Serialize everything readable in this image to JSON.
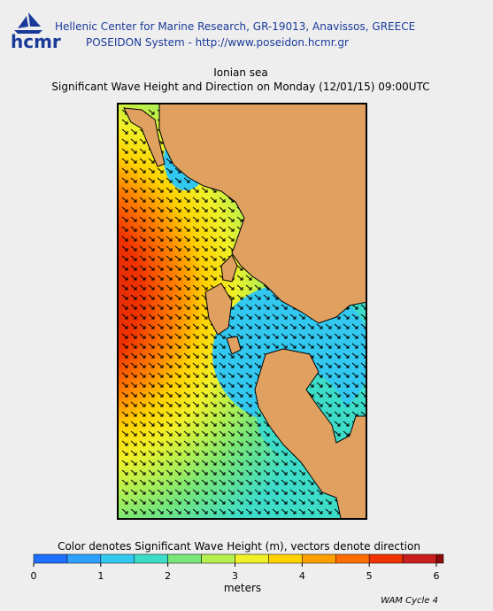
{
  "header": {
    "logo": "hcmr",
    "line1": "Hellenic Center for Marine Research, GR-19013, Anavissos, GREECE",
    "line2": "POSEIDON System - http://www.poseidon.hcmr.gr"
  },
  "map": {
    "region": "Ionian sea",
    "title": "Significant Wave Height and Direction on Monday (12/01/15) 09:00UTC"
  },
  "colorbar": {
    "caption": "Color denotes Significant Wave Height (m), vectors denote direction",
    "lim": [
      0,
      6
    ],
    "ticks": [
      0,
      1,
      2,
      3,
      4,
      5,
      6
    ],
    "unit": "meters",
    "colors": [
      "#1e6eff",
      "#2ea0ff",
      "#32c8f0",
      "#3cdcc8",
      "#78e678",
      "#b4f050",
      "#f0f028",
      "#ffd200",
      "#ffa000",
      "#ff6e00",
      "#f03200",
      "#c81e1e"
    ]
  },
  "footer": {
    "model": "WAM Cycle 4"
  }
}
